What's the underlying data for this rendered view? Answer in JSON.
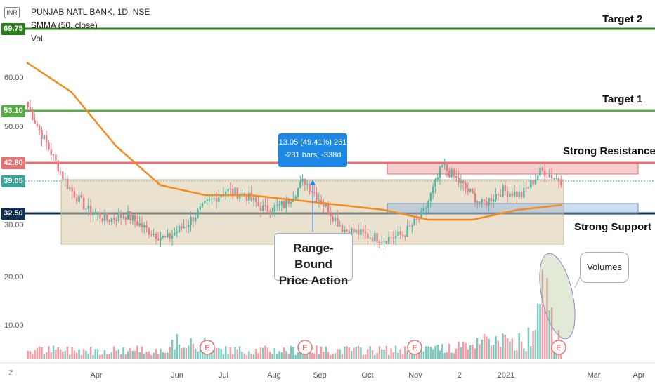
{
  "header": {
    "title": "PUNJAB NATL BANK, 1D, NSE",
    "indicator": "SMMA (50, close)",
    "volume_label": "Vol",
    "currency": "INR",
    "z_button": "Z"
  },
  "colors": {
    "target2": "#2e7d1f",
    "target1": "#5aaa48",
    "resistance": "#e57373",
    "support": "#0d2f52",
    "smma": "#f28c1e",
    "up": "#4fb8a8",
    "down": "#ef7b86",
    "range_box": "#d9c9a6",
    "price_badge": "#3aa39a",
    "measure": "#1e88e5"
  },
  "price_badges": {
    "target2": "69.75",
    "target1": "53.10",
    "resistance": "42.80",
    "current": "39.05",
    "support": "32.50"
  },
  "annotations": {
    "target2": "Target 2",
    "target1": "Target 1",
    "resistance": "Strong Resistance",
    "support": "Strong Support",
    "range_line1": "Range-Bound",
    "range_line2": "Price Action",
    "volumes": "Volumes",
    "measure_line1": "13.05 (49.41%) 261",
    "measure_line2": "-231 bars, -338d",
    "earnings": "E"
  },
  "chart_data": {
    "type": "candlestick",
    "title": "PUNJAB NATL BANK, 1D, NSE",
    "y_ticks": [
      "60.00",
      "50.00",
      "30.00",
      "20.00",
      "10.00"
    ],
    "x_ticks": [
      "Apr",
      "Jun",
      "Jul",
      "Aug",
      "Sep",
      "Oct",
      "Nov",
      "2",
      "2021",
      "Mar",
      "Apr"
    ],
    "levels": {
      "target2": 69.75,
      "target1": 53.1,
      "resistance": 42.8,
      "current": 39.05,
      "support": 32.5
    },
    "range_box": {
      "low": 26.0,
      "high": 39.0
    },
    "close_path": [
      [
        "Feb",
        54
      ],
      [
        "Mar",
        46
      ],
      [
        "Mar",
        38
      ],
      [
        "Mar",
        33
      ],
      [
        "Apr",
        31
      ],
      [
        "Apr",
        32
      ],
      [
        "May",
        29
      ],
      [
        "May",
        27
      ],
      [
        "Jun",
        30
      ],
      [
        "Jun",
        34
      ],
      [
        "Jul",
        37
      ],
      [
        "Jul",
        36
      ],
      [
        "Aug",
        33
      ],
      [
        "Aug",
        34
      ],
      [
        "Sep",
        39
      ],
      [
        "Sep",
        34
      ],
      [
        "Oct",
        29
      ],
      [
        "Oct",
        28
      ],
      [
        "Nov",
        27
      ],
      [
        "Nov",
        28
      ],
      [
        "Dec",
        32
      ],
      [
        "Dec",
        42
      ],
      [
        "Jan",
        38
      ],
      [
        "Jan",
        34
      ],
      [
        "2021",
        37
      ],
      [
        "Feb",
        36
      ],
      [
        "Feb",
        41
      ],
      [
        "Feb",
        39
      ]
    ],
    "smma": [
      [
        "Feb",
        63
      ],
      [
        "Mar",
        57
      ],
      [
        "Apr",
        46
      ],
      [
        "May",
        38
      ],
      [
        "Jun",
        36
      ],
      [
        "Jul",
        36
      ],
      [
        "Aug",
        35
      ],
      [
        "Sep",
        34
      ],
      [
        "Oct",
        33
      ],
      [
        "Nov",
        31
      ],
      [
        "Dec",
        31
      ],
      [
        "Jan",
        33
      ],
      [
        "Feb",
        34
      ]
    ],
    "earnings_markers": [
      "Jun",
      "Sep",
      "Nov",
      "Feb"
    ]
  }
}
